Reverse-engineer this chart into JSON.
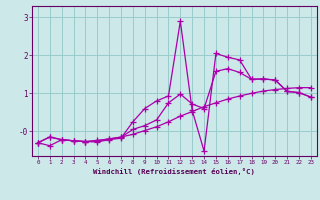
{
  "xlabel": "Windchill (Refroidissement éolien,°C)",
  "bg_color": "#cce8e8",
  "line_color": "#aa00aa",
  "grid_color": "#99cccc",
  "axis_color": "#660066",
  "text_color": "#550055",
  "xlim": [
    -0.5,
    23.5
  ],
  "ylim": [
    -0.65,
    3.3
  ],
  "series1_x": [
    0,
    1,
    2,
    3,
    4,
    5,
    6,
    7,
    8,
    9,
    10,
    11,
    12,
    13,
    14,
    15,
    16,
    17,
    18,
    19,
    20,
    21,
    22,
    23
  ],
  "series1_y": [
    -0.3,
    -0.38,
    -0.22,
    -0.25,
    -0.27,
    -0.24,
    -0.2,
    -0.15,
    -0.08,
    0.02,
    0.12,
    0.25,
    0.4,
    0.52,
    0.65,
    0.75,
    0.85,
    0.93,
    1.0,
    1.06,
    1.1,
    1.13,
    1.15,
    1.15
  ],
  "series2_x": [
    0,
    1,
    2,
    3,
    4,
    5,
    6,
    7,
    8,
    9,
    10,
    11,
    12,
    13,
    14,
    15,
    16,
    17,
    18,
    19,
    20,
    21,
    22,
    23
  ],
  "series2_y": [
    -0.3,
    -0.15,
    -0.22,
    -0.25,
    -0.27,
    -0.28,
    -0.22,
    -0.18,
    0.25,
    0.6,
    0.8,
    0.93,
    2.9,
    0.55,
    -0.52,
    2.05,
    1.95,
    1.88,
    1.37,
    1.38,
    1.35,
    1.05,
    1.02,
    0.9
  ],
  "series3_x": [
    0,
    1,
    2,
    3,
    4,
    5,
    6,
    7,
    8,
    9,
    10,
    11,
    12,
    13,
    14,
    15,
    16,
    17,
    18,
    19,
    20,
    21,
    22,
    23
  ],
  "series3_y": [
    -0.3,
    -0.15,
    -0.22,
    -0.25,
    -0.27,
    -0.25,
    -0.2,
    -0.16,
    0.05,
    0.15,
    0.3,
    0.75,
    0.98,
    0.72,
    0.6,
    1.58,
    1.65,
    1.55,
    1.37,
    1.38,
    1.35,
    1.05,
    1.02,
    0.9
  ]
}
